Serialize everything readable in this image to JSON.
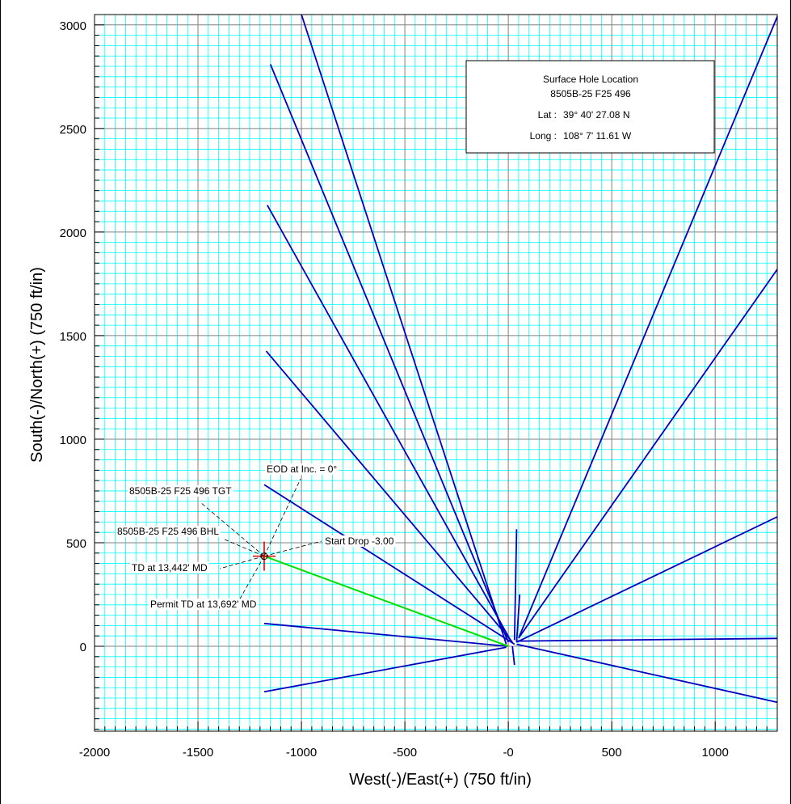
{
  "chart_data": {
    "type": "line",
    "title": "",
    "xlabel": "West(-)/East(+) (750 ft/in)",
    "ylabel": "South(-)/North(+) (750 ft/in)",
    "xlim": [
      -2000,
      1300
    ],
    "ylim": [
      -410,
      3050
    ],
    "x_ticks": [
      -2000,
      -1500,
      -1000,
      -500,
      0,
      500,
      1000
    ],
    "x_tick_labels": [
      "-2000",
      "-1500",
      "-1000",
      "-500",
      "-0",
      "500",
      "1000"
    ],
    "y_ticks": [
      0,
      500,
      1000,
      1500,
      2000,
      2500,
      3000
    ],
    "y_tick_labels": [
      "0",
      "500",
      "1000",
      "1500",
      "2000",
      "2500",
      "3000"
    ],
    "grid": true,
    "colors": {
      "offset_wells": "#0000bf",
      "plan": "#00e000",
      "target": "#e00000",
      "grid_minor": "#00ffff",
      "grid_major": "#808080"
    },
    "series": [
      {
        "role": "offset",
        "color": "#0000bf",
        "x": [
          -10,
          -1000
        ],
        "y": [
          10,
          3050
        ]
      },
      {
        "role": "offset",
        "color": "#0000bf",
        "x": [
          0,
          -1150
        ],
        "y": [
          20,
          2810
        ]
      },
      {
        "role": "offset",
        "color": "#0000bf",
        "x": [
          10,
          -1165
        ],
        "y": [
          30,
          2130
        ]
      },
      {
        "role": "offset",
        "color": "#0000bf",
        "x": [
          20,
          -1170
        ],
        "y": [
          20,
          1425
        ]
      },
      {
        "role": "offset",
        "color": "#0000bf",
        "x": [
          30,
          -1180
        ],
        "y": [
          10,
          780
        ]
      },
      {
        "role": "offset",
        "color": "#0000bf",
        "x": [
          -5,
          -1180
        ],
        "y": [
          0,
          110
        ]
      },
      {
        "role": "offset",
        "color": "#0000bf",
        "x": [
          -10,
          -1180
        ],
        "y": [
          -5,
          -220
        ]
      },
      {
        "role": "offset",
        "color": "#0000bf",
        "x": [
          20,
          30
        ],
        "y": [
          0,
          -90
        ]
      },
      {
        "role": "offset",
        "color": "#0000bf",
        "x": [
          30,
          40
        ],
        "y": [
          30,
          565
        ]
      },
      {
        "role": "offset",
        "color": "#0000bf",
        "x": [
          40,
          55
        ],
        "y": [
          20,
          250
        ]
      },
      {
        "role": "offset",
        "color": "#0000bf",
        "x": [
          50,
          1300
        ],
        "y": [
          40,
          3040
        ]
      },
      {
        "role": "offset",
        "color": "#0000bf",
        "x": [
          50,
          1300
        ],
        "y": [
          40,
          1820
        ]
      },
      {
        "role": "offset",
        "color": "#0000bf",
        "x": [
          40,
          1300
        ],
        "y": [
          20,
          625
        ]
      },
      {
        "role": "offset",
        "color": "#0000bf",
        "x": [
          40,
          1300
        ],
        "y": [
          25,
          38
        ]
      },
      {
        "role": "offset",
        "color": "#0000bf",
        "x": [
          40,
          1300
        ],
        "y": [
          10,
          -270
        ]
      },
      {
        "role": "plan",
        "color": "#00e000",
        "x": [
          0,
          -1180
        ],
        "y": [
          0,
          435
        ]
      }
    ],
    "target": {
      "x": -1180,
      "y": 435,
      "color": "#e00000"
    },
    "annotations": [
      {
        "text": "EOD at Inc. = 0°",
        "x": -1180,
        "y": 435
      },
      {
        "text": "8505B-25 F25 496 TGT",
        "x": -1180,
        "y": 435
      },
      {
        "text": "8505B-25 F25 496 BHL",
        "x": -1180,
        "y": 435
      },
      {
        "text": "Start Drop -3.00",
        "x": -1180,
        "y": 435
      },
      {
        "text": "TD at 13,442' MD",
        "x": -1180,
        "y": 435
      },
      {
        "text": "Permit TD at 13,692' MD",
        "x": -1180,
        "y": 435
      }
    ]
  },
  "legend_box": {
    "title": "Surface Hole Location",
    "well": "8505B-25 F25 496",
    "lat_label": "Lat :",
    "lat_value": "39° 40' 27.08 N",
    "long_label": "Long :",
    "long_value": "108° 7' 11.61 W"
  }
}
